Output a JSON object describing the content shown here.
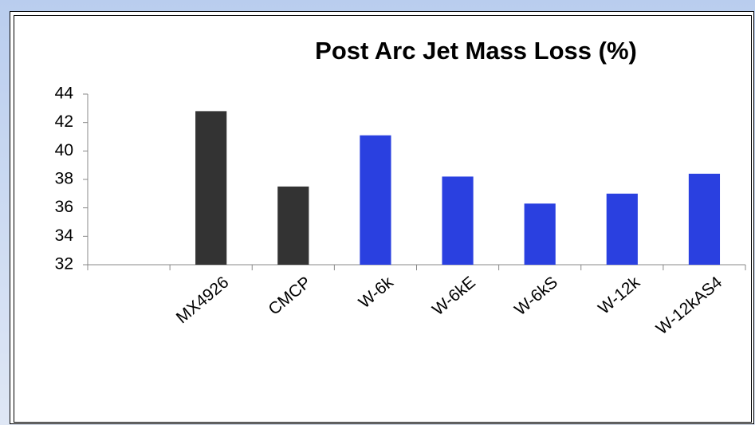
{
  "chart_data": {
    "type": "bar",
    "title": "Post Arc Jet Mass Loss (%)",
    "categories": [
      null,
      "MX4926",
      "CMCP",
      "W-6k",
      "W-6kE",
      "W-6kS",
      "W-12k",
      "W-12kAS4"
    ],
    "values": [
      null,
      42.8,
      37.5,
      41.1,
      38.2,
      36.3,
      37.0,
      38.4
    ],
    "colors": [
      null,
      "#333333",
      "#333333",
      "#2a40e0",
      "#2a40e0",
      "#2a40e0",
      "#2a40e0",
      "#2a40e0"
    ],
    "ylim": [
      32,
      44
    ],
    "yticks": [
      32,
      34,
      36,
      38,
      40,
      42,
      44
    ],
    "grid": false
  }
}
